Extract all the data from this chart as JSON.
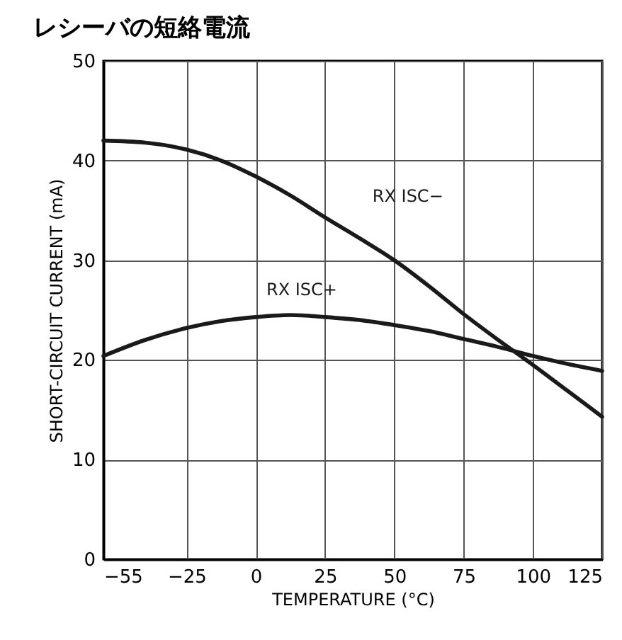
{
  "chart_data": {
    "type": "line",
    "title": "レシーバの短絡電流",
    "xlabel": "TEMPERATURE (°C)",
    "ylabel": "SHORT-CIRCUIT CURRENT (mA)",
    "x": [
      -55,
      -40,
      -25,
      -12.5,
      0,
      12.5,
      25,
      37.5,
      50,
      62.5,
      75,
      87.5,
      100,
      112.5,
      125
    ],
    "series": [
      {
        "name": "RX ISC−",
        "color": "#1a1a1a",
        "values": [
          42.0,
          41.8,
          41.1,
          40.0,
          38.4,
          36.5,
          34.3,
          32.2,
          30.0,
          27.4,
          24.6,
          22.0,
          19.5,
          16.9,
          14.3
        ]
      },
      {
        "name": "RX ISC+",
        "color": "#1a1a1a",
        "values": [
          20.4,
          22.0,
          23.2,
          23.9,
          24.3,
          24.5,
          24.3,
          24.0,
          23.5,
          22.9,
          22.1,
          21.3,
          20.4,
          19.6,
          18.9
        ]
      }
    ],
    "xlim": [
      -55,
      125
    ],
    "xticks": [
      {
        "value": -55,
        "label": "−55"
      },
      {
        "value": -25,
        "label": "−25"
      },
      0,
      25,
      50,
      75,
      100,
      125
    ],
    "ylim": [
      0,
      50
    ],
    "yticks": [
      0,
      10,
      20,
      30,
      40,
      50
    ],
    "grid": true,
    "marker": "none",
    "line_style": "solid"
  }
}
